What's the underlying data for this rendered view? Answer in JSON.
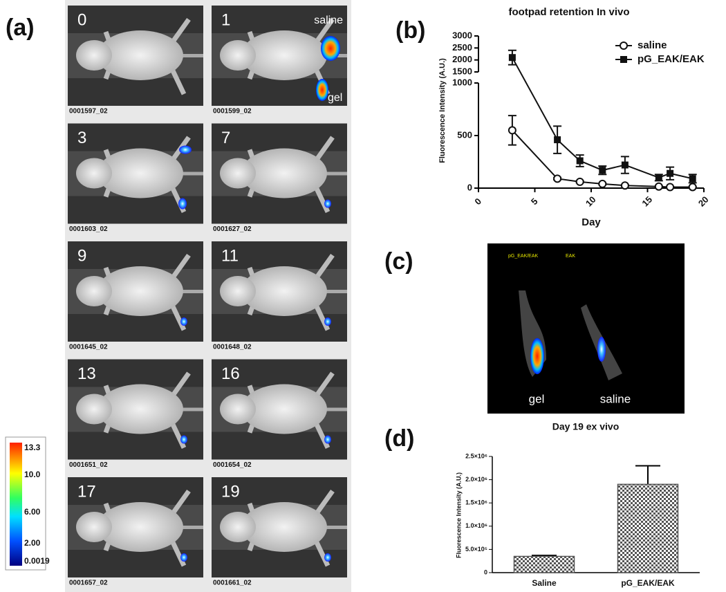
{
  "panel_labels": [
    "(a)",
    "(b)",
    "(c)",
    "(d)"
  ],
  "panel_a": {
    "tiles": [
      {
        "day": "0",
        "id": "0001597_02"
      },
      {
        "day": "1",
        "id": "0001599_02"
      },
      {
        "day": "3",
        "id": "0001603_02"
      },
      {
        "day": "7",
        "id": "0001627_02"
      },
      {
        "day": "9",
        "id": "0001645_02"
      },
      {
        "day": "11",
        "id": "0001648_02"
      },
      {
        "day": "13",
        "id": "0001651_02"
      },
      {
        "day": "16",
        "id": "0001654_02"
      },
      {
        "day": "17",
        "id": "0001657_02"
      },
      {
        "day": "19",
        "id": "0001661_02"
      }
    ],
    "tile_labels": [
      "saline",
      "gel"
    ],
    "colorbar_ticks": [
      "13.3",
      "10.0",
      "6.00",
      "2.00",
      "0.0019"
    ]
  },
  "panel_c": {
    "labels": [
      "pG_EAK/EAK",
      "EAK",
      "gel",
      "saline"
    ],
    "caption": "Day 19 ex vivo"
  },
  "chart_data": [
    {
      "type": "line",
      "title": "footpad retention In vivo",
      "x_label": "Day",
      "y_label": "Fluorescence Intensity (A.U.)",
      "xlim": [
        0,
        20
      ],
      "xticks": [
        0,
        5,
        10,
        15,
        20
      ],
      "ylim": [
        0,
        3000
      ],
      "yticks": [
        0,
        500,
        1000,
        1500,
        2000,
        2500,
        3000
      ],
      "y_break": [
        1000,
        1500
      ],
      "legend": "upper right",
      "series": [
        {
          "name": "saline",
          "color": "#111111",
          "marker": "open-circle",
          "x": [
            3,
            7,
            9,
            11,
            13,
            16,
            17,
            19
          ],
          "values": [
            550,
            90,
            60,
            40,
            25,
            15,
            10,
            10
          ],
          "errors": [
            140,
            10,
            8,
            6,
            5,
            5,
            4,
            4
          ]
        },
        {
          "name": "pG_EAK/EAK",
          "color": "#111111",
          "marker": "filled-square",
          "x": [
            3,
            7,
            9,
            11,
            13,
            16,
            17,
            19
          ],
          "values": [
            2100,
            460,
            260,
            170,
            220,
            100,
            140,
            90
          ],
          "errors": [
            300,
            130,
            55,
            40,
            80,
            30,
            60,
            40
          ]
        }
      ]
    },
    {
      "type": "bar",
      "y_label": "Fluorescence Intensity (A.U.)",
      "categories": [
        "Saline",
        "pG_EAK/EAK"
      ],
      "values": [
        350000,
        1900000
      ],
      "errors": [
        20000,
        400000
      ],
      "color": "#555555",
      "ylim": [
        0,
        2500000
      ],
      "yticks": [
        0,
        {
          "value": 500000,
          "label": "5.0×10⁵"
        },
        {
          "value": 1000000,
          "label": "1.0×10⁶"
        },
        {
          "value": 1500000,
          "label": "1.5×10⁶"
        },
        {
          "value": 2000000,
          "label": "2.0×10⁶"
        },
        {
          "value": 2500000,
          "label": "2.5×10⁶"
        }
      ]
    }
  ]
}
